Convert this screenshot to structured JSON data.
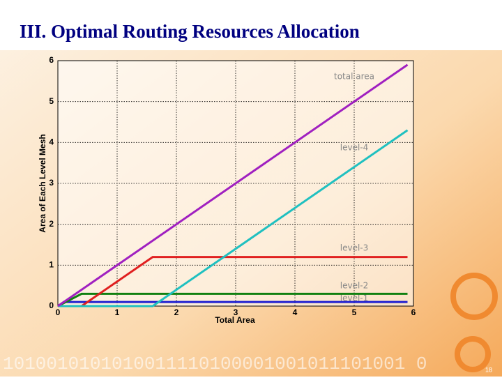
{
  "title": "III. Optimal Routing Resources Allocation",
  "slide_number": "18",
  "decoration_text": "1010010101010011110100001001011101001 0",
  "chart_data": {
    "type": "line",
    "xlabel": "Total Area",
    "ylabel": "Area of Each Level Mesh",
    "xlim": [
      0,
      6
    ],
    "ylim": [
      0,
      6
    ],
    "xticks": [
      0,
      1,
      2,
      3,
      4,
      5,
      6
    ],
    "yticks": [
      0,
      1,
      2,
      3,
      4,
      5,
      6
    ],
    "grid": true,
    "series": [
      {
        "name": "total area",
        "color": "#a020c0",
        "x": [
          0,
          5.9
        ],
        "values": [
          0,
          5.9
        ]
      },
      {
        "name": "level-4",
        "color": "#20c0c0",
        "x": [
          0,
          1.6,
          5.9
        ],
        "values": [
          0,
          0,
          4.3
        ]
      },
      {
        "name": "level-3",
        "color": "#e02020",
        "x": [
          0.4,
          1.6,
          5.9
        ],
        "values": [
          0,
          1.2,
          1.2
        ]
      },
      {
        "name": "level-2",
        "color": "#108010",
        "x": [
          0,
          0.4,
          5.9
        ],
        "values": [
          0,
          0.3,
          0.3
        ]
      },
      {
        "name": "level-1",
        "color": "#2020d0",
        "x": [
          0,
          0.1,
          5.9
        ],
        "values": [
          0,
          0.1,
          0.1
        ]
      }
    ]
  }
}
